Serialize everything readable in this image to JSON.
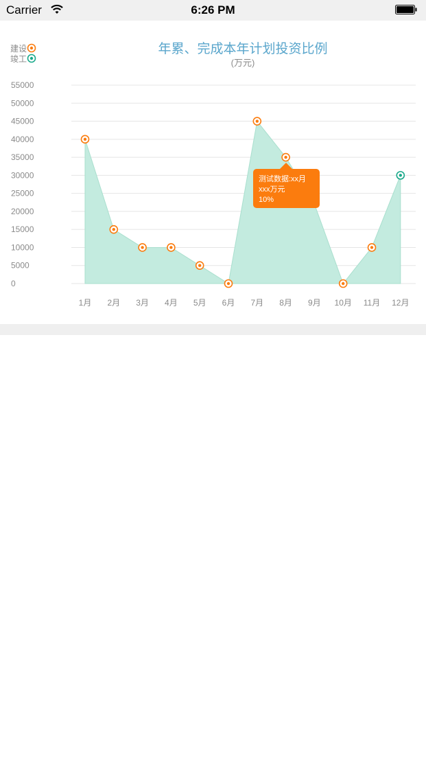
{
  "status_bar": {
    "carrier": "Carrier",
    "time": "6:26 PM"
  },
  "colors": {
    "build": "#fb7c0e",
    "complete": "#1aa98b",
    "area_fill": "#c3ebdf",
    "title": "#5aa6cc",
    "grid": "#e5e5e5",
    "axis_text": "#8a8a8a"
  },
  "chart_data": {
    "type": "area",
    "title": "年累、完成本年计划投资比例",
    "subtitle": "(万元)",
    "categories": [
      "1月",
      "2月",
      "3月",
      "4月",
      "5月",
      "6月",
      "7月",
      "8月",
      "9月",
      "10月",
      "11月",
      "12月"
    ],
    "yticks": [
      0,
      5000,
      10000,
      15000,
      20000,
      25000,
      30000,
      35000,
      40000,
      45000,
      50000,
      55000
    ],
    "ylim": [
      0,
      55000
    ],
    "values": [
      40000,
      15000,
      10000,
      10000,
      5000,
      0,
      45000,
      35000,
      22000,
      0,
      10000,
      30000
    ],
    "markers": [
      "build",
      "build",
      "build",
      "build",
      "build",
      "build",
      "build",
      "build",
      null,
      "build",
      "build",
      "complete"
    ],
    "legend": [
      {
        "key": "build",
        "label": "建设"
      },
      {
        "key": "complete",
        "label": "竣工"
      }
    ],
    "legend_position": "top-left",
    "grid": true,
    "tooltip": {
      "lines": [
        "测试数据:xx月",
        "xxx万元",
        "10%"
      ],
      "anchor_index": 7
    }
  }
}
